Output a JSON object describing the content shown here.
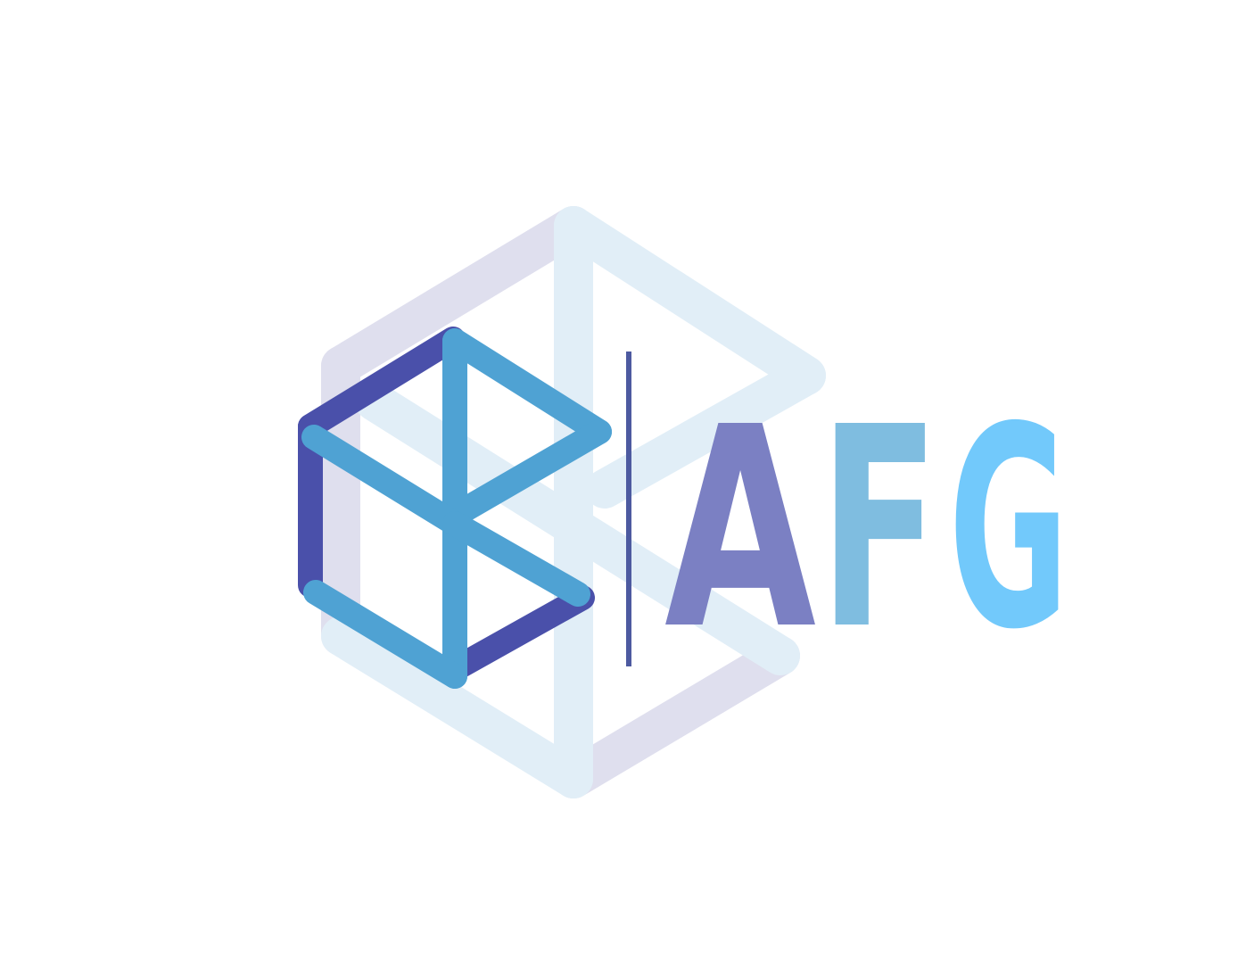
{
  "logo": {
    "text_letters": [
      {
        "char": "A",
        "color": "#7b80c3"
      },
      {
        "char": "F",
        "color": "#7fbde0"
      },
      {
        "char": "G",
        "color": "#72c9fb"
      }
    ],
    "colors": {
      "background": "#ffffff",
      "ghost_cube_blue": "#e1eef7",
      "ghost_cube_lavender": "#dfdfee",
      "front_cube_dark": "#4a50aa",
      "front_cube_light": "#4fa2d3",
      "divider": "#4d5aa0"
    },
    "icons": {
      "ghost": "ghost-cube-icon",
      "front": "cube-icon"
    }
  }
}
